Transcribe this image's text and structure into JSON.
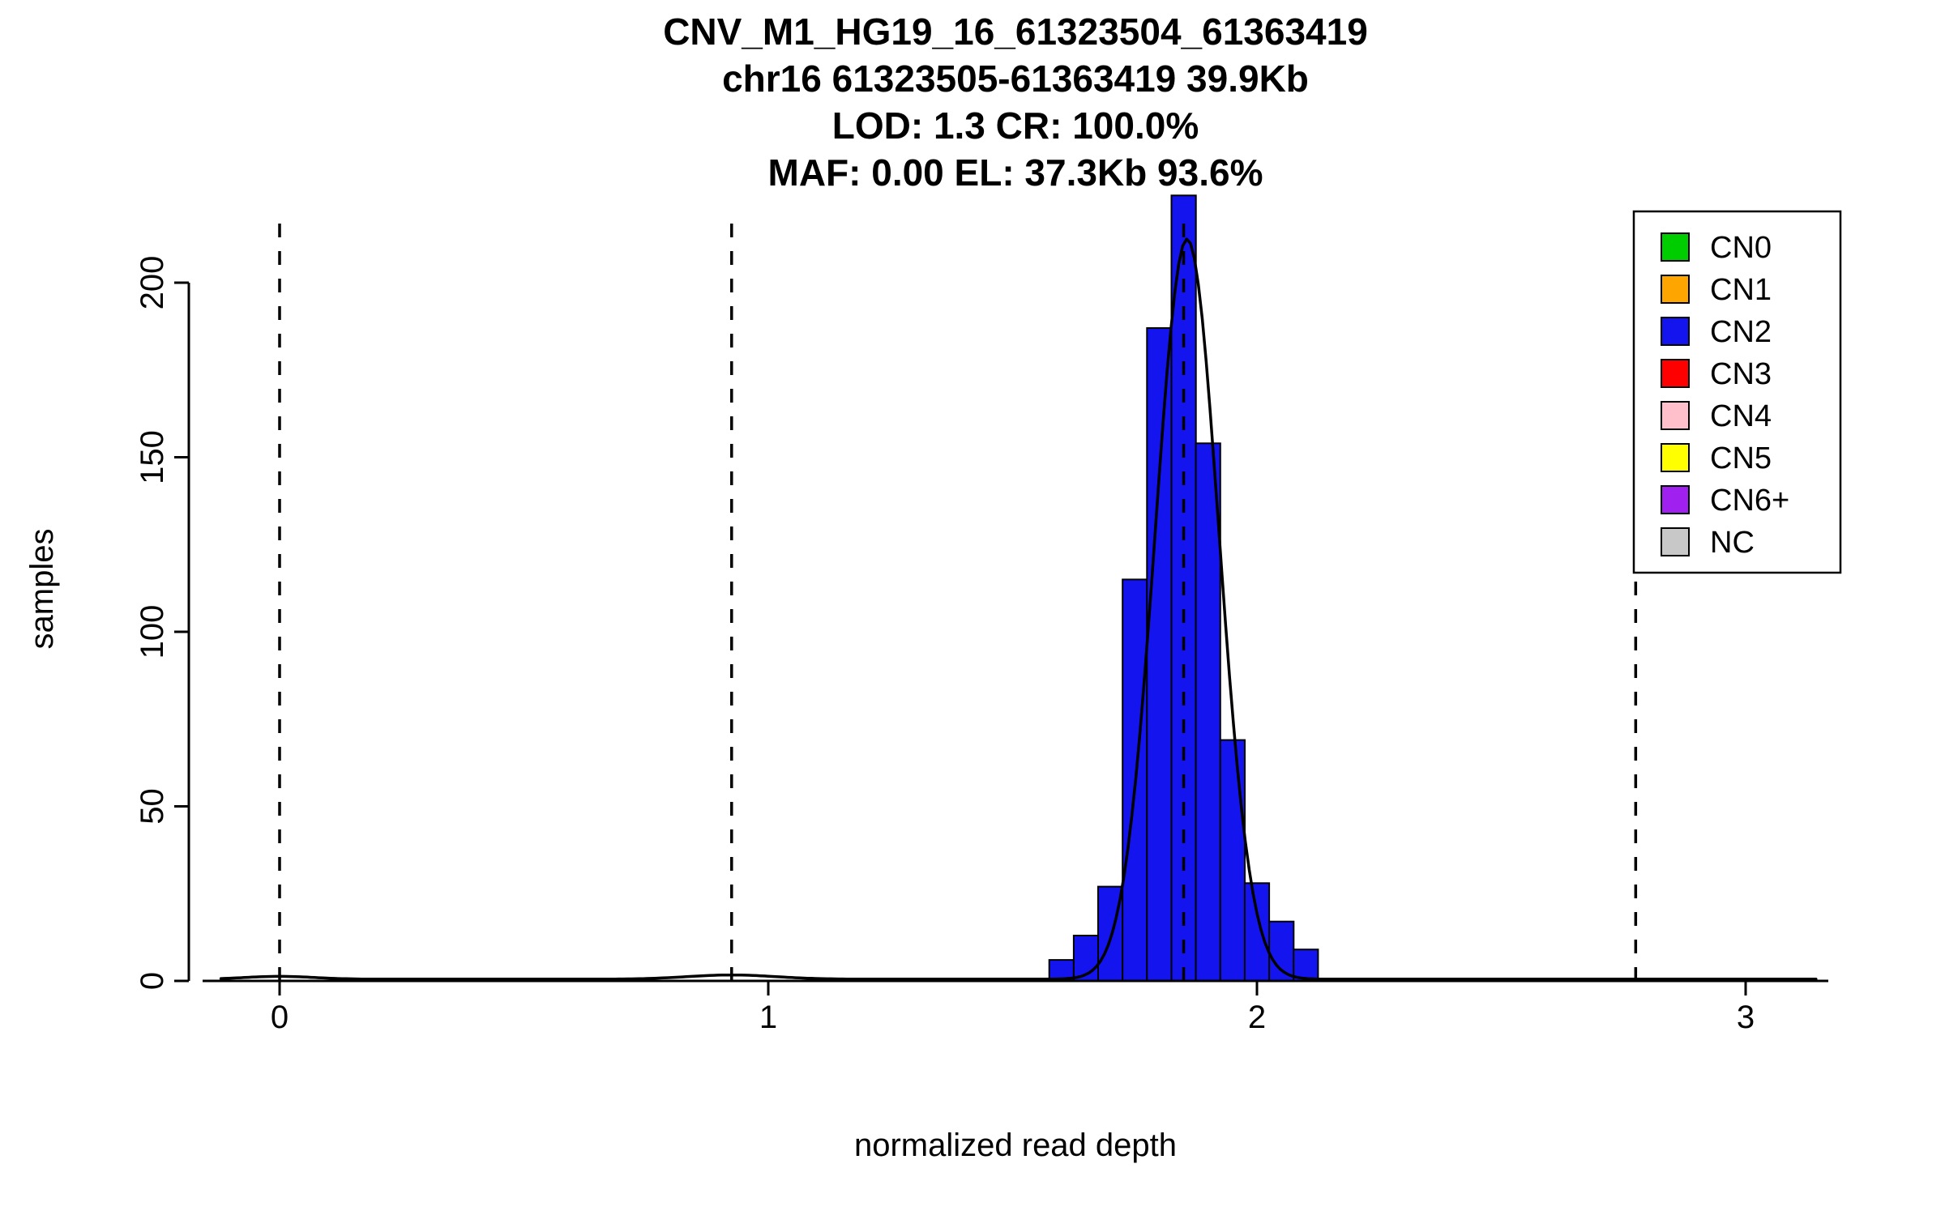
{
  "page": {
    "background_color": "#ffffff"
  },
  "chart_data": {
    "type": "bar",
    "subtype": "histogram-with-density",
    "title_lines": [
      "CNV_M1_HG19_16_61323504_61363419",
      "chr16 61323505-61363419 39.9Kb",
      "LOD: 1.3 CR: 100.0%",
      "MAF: 0.00 EL: 37.3Kb 93.6%"
    ],
    "xlabel": "normalized read depth",
    "ylabel": "samples",
    "x_ticks": [
      0,
      1,
      2,
      3
    ],
    "y_ticks": [
      0,
      50,
      100,
      150,
      200
    ],
    "xlim": [
      -0.15,
      3.2
    ],
    "ylim": [
      0,
      220
    ],
    "grid": false,
    "histogram": {
      "series_name": "CN2",
      "fill_color": "#1414EE",
      "border_color": "#000000",
      "bin_start": 1.575,
      "bin_width": 0.05,
      "counts": [
        6,
        13,
        27,
        115,
        187,
        225,
        154,
        69,
        28,
        17,
        9
      ]
    },
    "density_curve": {
      "color": "#000000",
      "baseline": 0.5,
      "components": [
        {
          "mean": 1.857,
          "sd": 0.065,
          "peak": 212
        },
        {
          "mean": 0.925,
          "sd": 0.09,
          "peak": 1.2
        },
        {
          "mean": 0.0,
          "sd": 0.07,
          "peak": 0.8
        }
      ]
    },
    "dashed_lines_x": [
      0,
      0.925,
      1.85,
      2.775
    ],
    "dashed_line_color": "#000000",
    "legend": {
      "position": "top-right",
      "items": [
        {
          "label": "CN0",
          "color": "#00CD00"
        },
        {
          "label": "CN1",
          "color": "#FFA500"
        },
        {
          "label": "CN2",
          "color": "#1414EE"
        },
        {
          "label": "CN3",
          "color": "#FF0000"
        },
        {
          "label": "CN4",
          "color": "#FFC0CB"
        },
        {
          "label": "CN5",
          "color": "#FFFF00"
        },
        {
          "label": "CN6+",
          "color": "#A020F0"
        },
        {
          "label": "NC",
          "color": "#C8C8C8"
        }
      ]
    }
  }
}
